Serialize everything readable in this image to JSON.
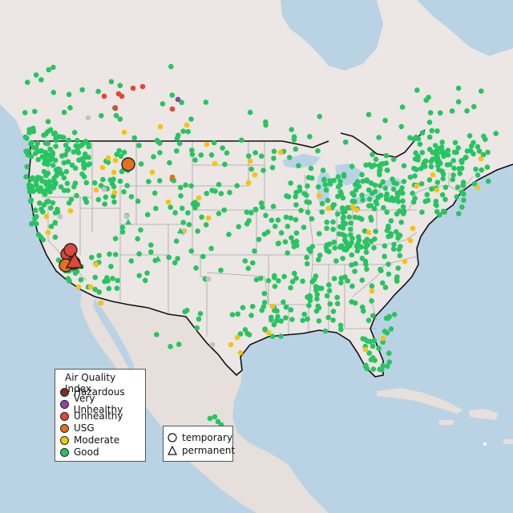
{
  "colors": {
    "water": "#b9d3e4",
    "land": "#ece6e4",
    "land_alt": "#e7dfdc",
    "state_lines": "#a6a6a6",
    "us_border": "#111111",
    "hazardous": "#7e2d26",
    "very_unhealthy": "#8f45a8",
    "unhealthy": "#e0463a",
    "usg": "#e66f1c",
    "moderate": "#f2c40f",
    "good": "#27c462",
    "no_data": "#c2c2c2"
  },
  "legend": {
    "title": "Air Quality Index",
    "items": [
      {
        "label": "Hazardous",
        "color": "#7e2d26"
      },
      {
        "label": "Very Unhealthy",
        "color": "#8f45a8"
      },
      {
        "label": "Unhealthy",
        "color": "#e0463a"
      },
      {
        "label": "USG",
        "color": "#e66f1c"
      },
      {
        "label": "Moderate",
        "color": "#f2c40f"
      },
      {
        "label": "Good",
        "color": "#27c462"
      }
    ]
  },
  "monitor_type_legend": {
    "temporary": "temporary",
    "permanent": "permanent"
  }
}
